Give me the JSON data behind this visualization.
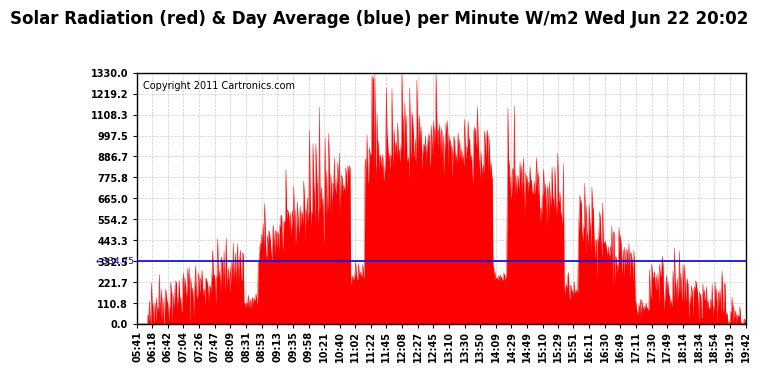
{
  "title": "Solar Radiation (red) & Day Average (blue) per Minute W/m2 Wed Jun 22 20:02",
  "copyright_text": "Copyright 2011 Cartronics.com",
  "ymax": 1330.0,
  "ymin": 0.0,
  "yticks": [
    0.0,
    110.8,
    221.7,
    332.5,
    443.3,
    554.2,
    665.0,
    775.8,
    886.7,
    997.5,
    1108.3,
    1219.2,
    1330.0
  ],
  "day_average": 334.75,
  "bar_color": "#ff0000",
  "average_line_color": "#0000ff",
  "background_color": "#ffffff",
  "plot_bg_color": "#ffffff",
  "grid_color": "#cccccc",
  "left_label_color": "#0000aa",
  "title_fontsize": 12,
  "tick_fontsize": 7,
  "x_tick_interval": 9
}
